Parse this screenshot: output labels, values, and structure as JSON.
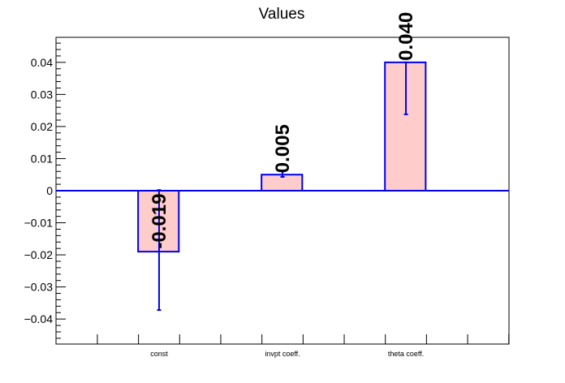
{
  "chart_data": {
    "type": "bar",
    "title": "Values",
    "xlabel": "",
    "ylabel": "",
    "categories": [
      "const",
      "invpt coeff.",
      "theta coeff."
    ],
    "values": [
      -0.019,
      0.005,
      0.04
    ],
    "value_labels": [
      "-0.019",
      "0.005",
      "0.040"
    ],
    "error_low": [
      -0.0372,
      0.0043,
      0.0238
    ],
    "error_high": [
      0.0002,
      0.0061,
      0.04
    ],
    "ylim": [
      -0.0478,
      0.0478
    ],
    "yticks": [
      -0.04,
      -0.03,
      -0.02,
      -0.01,
      0,
      0.01,
      0.02,
      0.03,
      0.04
    ],
    "ytick_labels": [
      "−0.04",
      "−0.03",
      "−0.02",
      "−0.01",
      "0",
      "0.01",
      "0.02",
      "0.03",
      "0.04"
    ],
    "grid": false,
    "legend": "none",
    "colors": {
      "bar_fill": "#ffcccc",
      "bar_stroke": "#0000ee",
      "error_bar": "#0000ee",
      "zero_line": "#0000ee",
      "axis": "#000000"
    }
  }
}
